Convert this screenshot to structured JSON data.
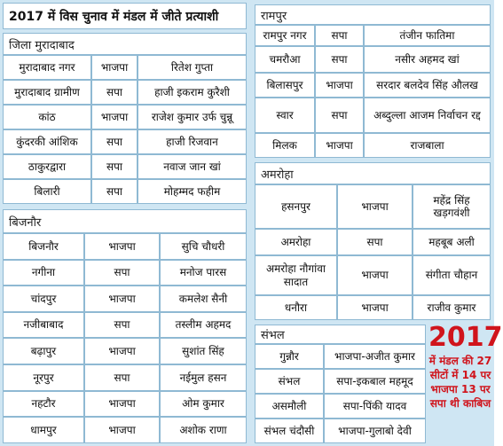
{
  "title": "2017 में विस चुनाव में मंडल में जीते प्रत्याशी",
  "sections": [
    {
      "name": "जिला मुरादाबाद",
      "rows": [
        [
          "मुरादाबाद नगर",
          "भाजपा",
          "रितेश गुप्ता"
        ],
        [
          "मुरादाबाद ग्रामीण",
          "सपा",
          "हाजी इकराम कुरैशी"
        ],
        [
          "कांठ",
          "भाजपा",
          "राजेश कुमार उर्फ चुन्नू"
        ],
        [
          "कुंदरकी आंशिक",
          "सपा",
          "हाजी रिजवान"
        ],
        [
          "ठाकुरद्वारा",
          "सपा",
          "नवाज जान खां"
        ],
        [
          "बिलारी",
          "सपा",
          "मोहम्मद फहीम"
        ]
      ]
    },
    {
      "name": "बिजनौर",
      "rows": [
        [
          "बिजनौर",
          "भाजपा",
          "सुचि चौधरी"
        ],
        [
          "नगीना",
          "सपा",
          "मनोज पारस"
        ],
        [
          "चांदपुर",
          "भाजपा",
          "कमलेश सैनी"
        ],
        [
          "नजीबाबाद",
          "सपा",
          "तस्लीम अहमद"
        ],
        [
          "बढ़ापुर",
          "भाजपा",
          "सुशांत सिंह"
        ],
        [
          "नूरपुर",
          "सपा",
          "नईमुल हसन"
        ],
        [
          "नहटौर",
          "भाजपा",
          "ओम कुमार"
        ],
        [
          "धामपुर",
          "भाजपा",
          "अशोक राणा"
        ]
      ]
    },
    {
      "name": "रामपुर",
      "rows": [
        [
          "रामपुर नगर",
          "सपा",
          "तंजीन फातिमा"
        ],
        [
          "चमरौआ",
          "सपा",
          "नसीर अहमद खां"
        ],
        [
          "बिलासपुर",
          "भाजपा",
          "सरदार बलदेव सिंह औलख"
        ],
        [
          "स्वार",
          "सपा",
          "अब्दुल्ला आजम निर्वाचन रद्द"
        ],
        [
          "मिलक",
          "भाजपा",
          "राजबाला"
        ]
      ]
    },
    {
      "name": "अमरोहा",
      "rows": [
        [
          "हसनपुर",
          "भाजपा",
          "महेंद्र सिंह खड़गवंशी"
        ],
        [
          "अमरोहा",
          "सपा",
          "महबूब अली"
        ],
        [
          "अमरोहा नौगांवा सादात",
          "भाजपा",
          "संगीता चौहान"
        ],
        [
          "धनौरा",
          "भाजपा",
          "राजीव कुमार"
        ]
      ]
    },
    {
      "name": "संभल",
      "rows": [
        [
          "गुन्नौर",
          "भाजपा-अजीत कुमार"
        ],
        [
          "संभल",
          "सपा-इकबाल महमूद"
        ],
        [
          "असमौली",
          "सपा-पिंकी यादव"
        ],
        [
          "संभल चंदौसी",
          "भाजपा-गुलाबो देवी"
        ]
      ]
    }
  ],
  "callout": {
    "year": "2017",
    "text": "में मंडल की 27 सीटों में 14 पर भाजपा 13 पर सपा थी काबिज"
  }
}
